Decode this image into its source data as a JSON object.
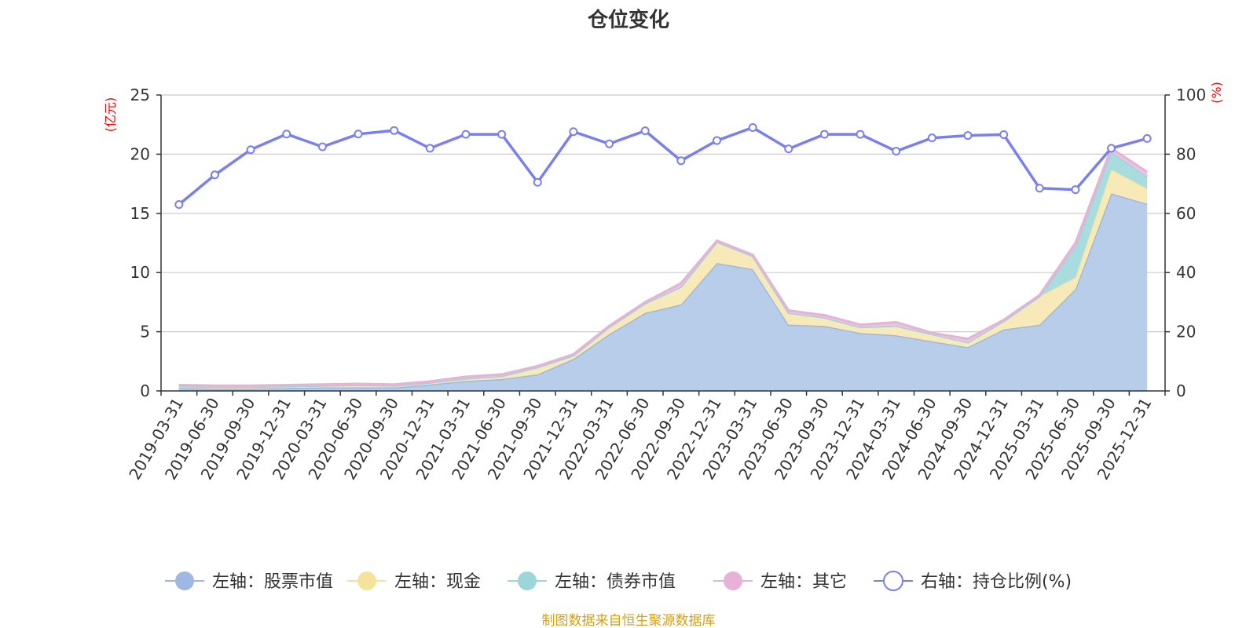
{
  "chart_data": {
    "type": "area",
    "title": "仓位变化",
    "left_axis_unit": "(亿元)",
    "right_axis_unit": "(%)",
    "left_ylim": [
      0,
      25
    ],
    "left_ticks": [
      0,
      5,
      10,
      15,
      20,
      25
    ],
    "right_ylim": [
      0,
      100
    ],
    "right_ticks": [
      0,
      20,
      40,
      60,
      80,
      100
    ],
    "categories": [
      "2019-03-31",
      "2019-06-30",
      "2019-09-30",
      "2019-12-31",
      "2020-03-31",
      "2020-06-30",
      "2020-09-30",
      "2020-12-31",
      "2021-03-31",
      "2021-06-30",
      "2021-09-30",
      "2021-12-31",
      "2022-03-31",
      "2022-06-30",
      "2022-09-30",
      "2022-12-31",
      "2023-03-31",
      "2023-06-30",
      "2023-09-30",
      "2023-12-31",
      "2024-03-31",
      "2024-06-30",
      "2024-09-30",
      "2024-12-31",
      "2025-03-31",
      "2025-06-30",
      "2025-09-30",
      "2025-12-31"
    ],
    "stacked_series": [
      {
        "name": "左轴：股票市值",
        "color": "#9db8e2",
        "fill": "#b7cdea",
        "values": [
          0.25,
          0.2,
          0.2,
          0.25,
          0.3,
          0.3,
          0.3,
          0.55,
          0.85,
          1.0,
          1.4,
          2.7,
          4.8,
          6.6,
          7.3,
          10.8,
          10.3,
          5.6,
          5.5,
          4.9,
          4.7,
          4.2,
          3.7,
          5.2,
          5.6,
          8.6,
          16.7,
          15.8
        ]
      },
      {
        "name": "左轴：现金",
        "color": "#f5e29b",
        "fill": "#f8eab8",
        "values": [
          0.15,
          0.15,
          0.15,
          0.15,
          0.15,
          0.2,
          0.15,
          0.15,
          0.2,
          0.25,
          0.6,
          0.3,
          0.6,
          0.8,
          1.5,
          1.8,
          1.1,
          1.0,
          0.7,
          0.5,
          0.8,
          0.6,
          0.4,
          0.7,
          2.4,
          1.0,
          2.0,
          1.3
        ]
      },
      {
        "name": "左轴：债券市值",
        "color": "#9dd6d9",
        "fill": "#a8dcde",
        "values": [
          0,
          0,
          0,
          0,
          0,
          0,
          0,
          0,
          0,
          0,
          0,
          0,
          0,
          0,
          0,
          0,
          0,
          0,
          0,
          0,
          0,
          0,
          0,
          0,
          0,
          2.6,
          1.5,
          1.0
        ]
      },
      {
        "name": "左轴：其它",
        "color": "#e7b2d6",
        "fill": "#ecc4df",
        "values": [
          0.1,
          0.1,
          0.1,
          0.1,
          0.1,
          0.1,
          0.1,
          0.1,
          0.15,
          0.15,
          0.1,
          0.1,
          0.1,
          0.1,
          0.3,
          0.1,
          0.1,
          0.2,
          0.2,
          0.2,
          0.3,
          0.1,
          0.3,
          0.1,
          0.1,
          0.3,
          0.3,
          0.4
        ]
      }
    ],
    "line_series": {
      "name": "右轴：持仓比例(%)",
      "color": "#7a7ff0",
      "values": [
        63.0,
        73.0,
        81.5,
        86.8,
        82.5,
        86.8,
        88.0,
        82.0,
        86.7,
        86.7,
        70.5,
        87.6,
        83.5,
        87.9,
        77.8,
        84.6,
        89.0,
        81.8,
        86.7,
        86.7,
        81.0,
        85.5,
        86.3,
        86.6,
        68.5,
        68.0,
        82.0,
        85.3
      ]
    },
    "source_text": "制图数据来自恒生聚源数据库",
    "colors": {
      "axis": "#333333",
      "grid": "#cccccc",
      "unit": "#ff0000",
      "source": "#d4a017",
      "line": "#7a7ff0"
    }
  }
}
